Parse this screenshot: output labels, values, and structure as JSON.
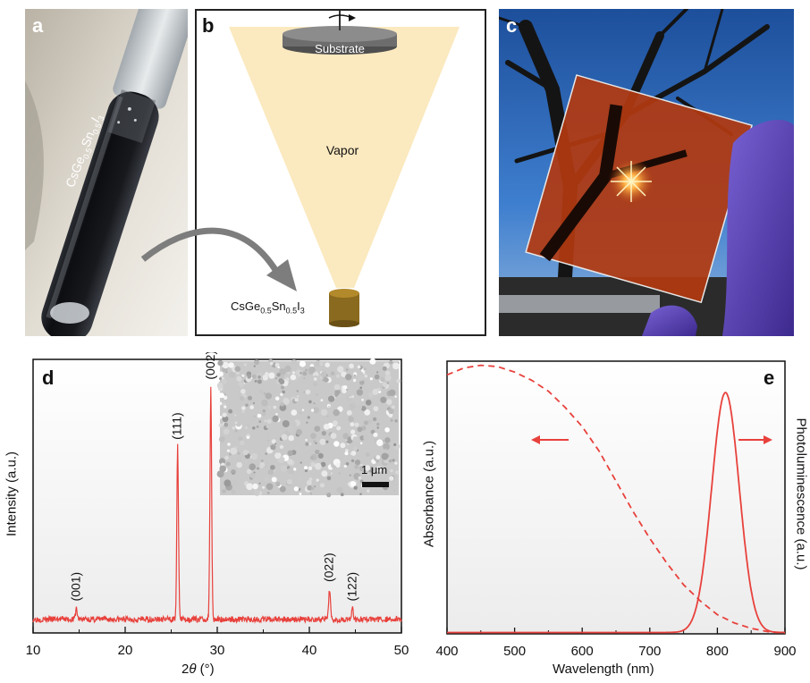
{
  "panel_labels": {
    "a": "a",
    "b": "b",
    "c": "c",
    "d": "d",
    "e": "e"
  },
  "panel_a": {
    "tube_label": "CsGe0.5Sn0.5I3",
    "tube_label_parts": {
      "base1": "CsGe",
      "sub1": "0.5",
      "base2": "Sn",
      "sub2": "0.5",
      "base3": "I",
      "sub3": "3"
    }
  },
  "panel_b": {
    "substrate_label": "Substrate",
    "vapor_label": "Vapor",
    "source_label_parts": {
      "base1": "CsGe",
      "sub1": "0.5",
      "base2": "Sn",
      "sub2": "0.5",
      "base3": "I",
      "sub3": "3"
    },
    "colors": {
      "vapor": "#fbe7b8",
      "substrate": "#6d6d6d",
      "source": "#8a6a1e"
    }
  },
  "panel_c": {
    "description_colors": {
      "sky": "#2f6fc4",
      "film": "#b23a10",
      "glove": "#5a3fb5"
    }
  },
  "chart_data": [
    {
      "panel": "d",
      "type": "line",
      "xlabel_parts": {
        "pre": "2",
        "theta": "θ",
        "post": " (°)"
      },
      "ylabel": "Intensity (a.u.)",
      "xlim": [
        10,
        50
      ],
      "x_ticks": [
        10,
        20,
        30,
        40,
        50
      ],
      "x_tick_labels": [
        "10",
        "20",
        "30",
        "40",
        "50"
      ],
      "y_ticks_shown": false,
      "series": [
        {
          "color": "#e8413c",
          "baseline": 0.05,
          "peaks": [
            {
              "x": 14.7,
              "height": 0.04,
              "label": "(001)"
            },
            {
              "x": 25.7,
              "height": 0.63,
              "label": "(111)"
            },
            {
              "x": 29.3,
              "height": 0.85,
              "label": "(002)"
            },
            {
              "x": 42.2,
              "height": 0.11,
              "label": "(022)"
            },
            {
              "x": 44.7,
              "height": 0.04,
              "label": "(122)"
            }
          ]
        }
      ],
      "inset": {
        "scale_bar_label": "1 μm"
      },
      "grid": false
    },
    {
      "panel": "e",
      "type": "line",
      "xlabel": "Wavelength (nm)",
      "ylabel_left": "Absorbance (a.u.)",
      "ylabel_right": "Photoluminescence (a.u.)",
      "xlim": [
        400,
        900
      ],
      "x_ticks": [
        400,
        500,
        600,
        700,
        800,
        900
      ],
      "x_tick_labels": [
        "400",
        "500",
        "600",
        "700",
        "800",
        "900"
      ],
      "series": [
        {
          "style": "dashed",
          "axis": "left",
          "color": "#e8413c",
          "x": [
            400,
            425,
            450,
            475,
            500,
            525,
            550,
            575,
            600,
            625,
            650,
            675,
            700,
            725,
            750,
            775,
            800,
            825,
            850,
            875,
            900
          ],
          "y": [
            0.95,
            0.975,
            0.985,
            0.98,
            0.96,
            0.93,
            0.89,
            0.83,
            0.76,
            0.67,
            0.56,
            0.45,
            0.35,
            0.26,
            0.18,
            0.12,
            0.07,
            0.04,
            0.02,
            0.008,
            0.003
          ]
        },
        {
          "style": "solid",
          "axis": "right",
          "color": "#e8413c",
          "peak_x": 812,
          "peak_y": 0.88,
          "fwhm": 48
        }
      ],
      "arrows": [
        "left",
        "right"
      ],
      "grid": false
    }
  ]
}
